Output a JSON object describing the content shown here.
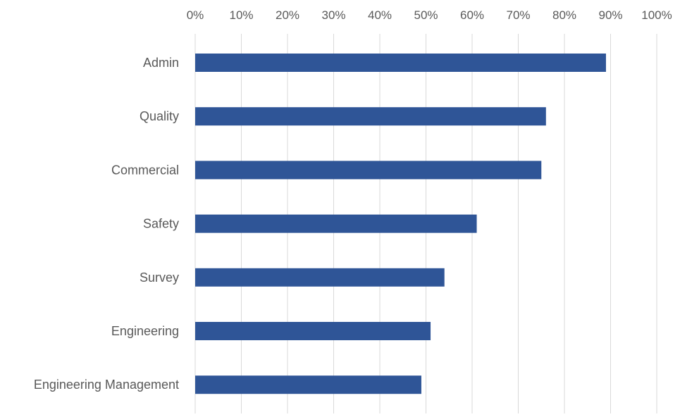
{
  "chart_data": {
    "type": "bar",
    "orientation": "horizontal",
    "title": "",
    "xlabel": "",
    "ylabel": "",
    "categories": [
      "Admin",
      "Quality",
      "Commercial",
      "Safety",
      "Survey",
      "Engineering",
      "Engineering Management"
    ],
    "values": [
      89,
      76,
      75,
      61,
      54,
      51,
      49
    ],
    "xlim": [
      0,
      100
    ],
    "x_ticks": [
      "0%",
      "10%",
      "20%",
      "30%",
      "40%",
      "50%",
      "60%",
      "70%",
      "80%",
      "90%",
      "100%"
    ],
    "x_axis_position": "top",
    "grid": true,
    "legend": "none",
    "colors": {
      "bar": "#2F5597",
      "grid": "#D9D9D9",
      "text": "#595959"
    }
  }
}
